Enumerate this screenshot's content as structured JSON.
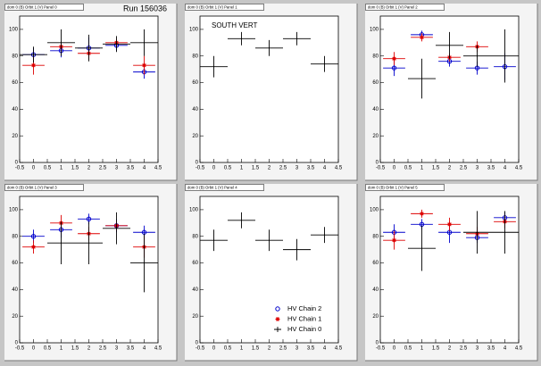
{
  "chart_data": [
    {
      "type": "errorbar",
      "title": "dom 0 (B) Orbit 1 (V) Panel 0",
      "annotation": "Run 156036",
      "xlim": [
        -0.5,
        4.5
      ],
      "ylim": [
        0,
        110
      ],
      "xticks": [
        -0.5,
        0,
        0.5,
        1,
        1.5,
        2,
        2.5,
        3,
        3.5,
        4,
        4.5
      ],
      "yticks": [
        0,
        20,
        40,
        60,
        80,
        100
      ],
      "legend": false,
      "series": [
        {
          "name": "HV Chain 2",
          "color": "#0000cc",
          "marker": "circle",
          "x": [
            0,
            1,
            2,
            3,
            4
          ],
          "values": [
            81,
            84,
            86,
            88,
            68
          ],
          "errors": [
            5,
            5,
            8,
            4,
            5
          ],
          "xerr": 0.4
        },
        {
          "name": "HV Chain 1",
          "color": "#dd0000",
          "marker": "star",
          "x": [
            0,
            1,
            2,
            3,
            4
          ],
          "values": [
            73,
            87,
            82,
            90,
            73
          ],
          "errors": [
            7,
            4,
            5,
            3,
            7
          ],
          "xerr": 0.4
        },
        {
          "name": "HV Chain 0",
          "color": "#000000",
          "marker": "plus",
          "x": [
            0,
            1,
            2,
            3,
            4
          ],
          "values": [
            81,
            90,
            86,
            89,
            90
          ],
          "errors": [
            6,
            10,
            10,
            6,
            10
          ],
          "xerr": 0.5
        }
      ]
    },
    {
      "type": "errorbar",
      "title": "dom 0 (B) Orbit 1 (V) Panel 1",
      "annotation": "SOUTH VERT",
      "xlim": [
        -0.5,
        4.5
      ],
      "ylim": [
        0,
        110
      ],
      "xticks": [
        -0.5,
        0,
        0.5,
        1,
        1.5,
        2,
        2.5,
        3,
        3.5,
        4,
        4.5
      ],
      "yticks": [
        0,
        20,
        40,
        60,
        80,
        100
      ],
      "legend": false,
      "series": [
        {
          "name": "HV Chain 0",
          "color": "#000000",
          "marker": "plus",
          "x": [
            0,
            1,
            2,
            3,
            4
          ],
          "values": [
            72,
            93,
            86,
            93,
            74
          ],
          "errors": [
            8,
            5,
            6,
            5,
            6
          ],
          "xerr": 0.5
        }
      ]
    },
    {
      "type": "errorbar",
      "title": "dom 0 (B) Orbit 1 (V) Panel 2",
      "xlim": [
        -0.5,
        4.5
      ],
      "ylim": [
        0,
        110
      ],
      "xticks": [
        -0.5,
        0,
        0.5,
        1,
        1.5,
        2,
        2.5,
        3,
        3.5,
        4,
        4.5
      ],
      "yticks": [
        0,
        20,
        40,
        60,
        80,
        100
      ],
      "legend": false,
      "series": [
        {
          "name": "HV Chain 2",
          "color": "#0000cc",
          "marker": "circle",
          "x": [
            0,
            1,
            2,
            3,
            4
          ],
          "values": [
            71,
            96,
            76,
            71,
            72
          ],
          "errors": [
            6,
            3,
            4,
            5,
            10
          ],
          "xerr": 0.4
        },
        {
          "name": "HV Chain 1",
          "color": "#dd0000",
          "marker": "star",
          "x": [
            0,
            1,
            2,
            3,
            4
          ],
          "values": [
            78,
            94,
            79,
            87,
            null
          ],
          "errors": [
            5,
            3,
            3,
            4,
            null
          ],
          "xerr": 0.4
        },
        {
          "name": "HV Chain 0",
          "color": "#000000",
          "marker": "plus",
          "x": [
            0,
            1,
            2,
            3,
            4
          ],
          "values": [
            null,
            63,
            88,
            80,
            80
          ],
          "errors": [
            null,
            15,
            10,
            8,
            20
          ],
          "xerr": 0.5
        }
      ]
    },
    {
      "type": "errorbar",
      "title": "dom 0 (B) Orbit 1 (V) Panel 3",
      "xlim": [
        -0.5,
        4.5
      ],
      "ylim": [
        0,
        110
      ],
      "xticks": [
        -0.5,
        0,
        0.5,
        1,
        1.5,
        2,
        2.5,
        3,
        3.5,
        4,
        4.5
      ],
      "yticks": [
        0,
        20,
        40,
        60,
        80,
        100
      ],
      "legend": false,
      "series": [
        {
          "name": "HV Chain 2",
          "color": "#0000cc",
          "marker": "circle",
          "x": [
            0,
            1,
            2,
            3,
            4
          ],
          "values": [
            80,
            85,
            93,
            88,
            83
          ],
          "errors": [
            5,
            6,
            4,
            5,
            5
          ],
          "xerr": 0.4
        },
        {
          "name": "HV Chain 1",
          "color": "#dd0000",
          "marker": "star",
          "x": [
            0,
            1,
            2,
            3,
            4
          ],
          "values": [
            72,
            90,
            82,
            88,
            72
          ],
          "errors": [
            5,
            6,
            5,
            4,
            8
          ],
          "xerr": 0.4
        },
        {
          "name": "HV Chain 0",
          "color": "#000000",
          "marker": "plus",
          "x": [
            0,
            1,
            2,
            3,
            4
          ],
          "values": [
            null,
            75,
            75,
            86,
            60
          ],
          "errors": [
            null,
            16,
            16,
            12,
            22
          ],
          "xerr": 0.5
        }
      ]
    },
    {
      "type": "errorbar",
      "title": "dom 0 (B) Orbit 1 (V) Panel 4",
      "xlim": [
        -0.5,
        4.5
      ],
      "ylim": [
        0,
        110
      ],
      "xticks": [
        -0.5,
        0,
        0.5,
        1,
        1.5,
        2,
        2.5,
        3,
        3.5,
        4,
        4.5
      ],
      "yticks": [
        0,
        20,
        40,
        60,
        80,
        100
      ],
      "legend": true,
      "series": [
        {
          "name": "HV Chain 2",
          "color": "#0000cc",
          "marker": "circle",
          "x": [],
          "values": [],
          "errors": [],
          "xerr": 0.4
        },
        {
          "name": "HV Chain 1",
          "color": "#dd0000",
          "marker": "star",
          "x": [],
          "values": [],
          "errors": [],
          "xerr": 0.4
        },
        {
          "name": "HV Chain 0",
          "color": "#000000",
          "marker": "plus",
          "x": [
            0,
            1,
            2,
            3,
            4
          ],
          "values": [
            77,
            92,
            77,
            70,
            81
          ],
          "errors": [
            8,
            6,
            8,
            8,
            6
          ],
          "xerr": 0.5
        }
      ]
    },
    {
      "type": "errorbar",
      "title": "dom 0 (B) Orbit 1 (V) Panel 5",
      "xlim": [
        -0.5,
        4.5
      ],
      "ylim": [
        0,
        110
      ],
      "xticks": [
        -0.5,
        0,
        0.5,
        1,
        1.5,
        2,
        2.5,
        3,
        3.5,
        4,
        4.5
      ],
      "yticks": [
        0,
        20,
        40,
        60,
        80,
        100
      ],
      "legend": false,
      "series": [
        {
          "name": "HV Chain 2",
          "color": "#0000cc",
          "marker": "circle",
          "x": [
            0,
            1,
            2,
            3,
            4
          ],
          "values": [
            83,
            89,
            83,
            79,
            94
          ],
          "errors": [
            6,
            4,
            8,
            4,
            4
          ],
          "xerr": 0.4
        },
        {
          "name": "HV Chain 1",
          "color": "#dd0000",
          "marker": "star",
          "x": [
            0,
            1,
            2,
            3,
            4
          ],
          "values": [
            77,
            97,
            89,
            82,
            91
          ],
          "errors": [
            7,
            3,
            5,
            5,
            5
          ],
          "xerr": 0.4
        },
        {
          "name": "HV Chain 0",
          "color": "#000000",
          "marker": "plus",
          "x": [
            0,
            1,
            2,
            3,
            4
          ],
          "values": [
            null,
            71,
            null,
            83,
            83
          ],
          "errors": [
            null,
            17,
            null,
            16,
            16
          ],
          "xerr": 0.5
        }
      ]
    }
  ]
}
